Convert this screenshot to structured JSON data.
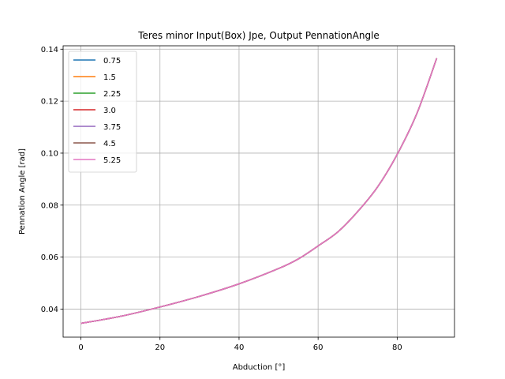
{
  "chart_data": {
    "type": "line",
    "title": "Teres minor Input(Box) Jpe, Output PennationAngle",
    "xlabel": "Abduction [°]",
    "ylabel": "Pennation Angle [rad]",
    "xlim": [
      -4.5,
      94.5
    ],
    "ylim": [
      0.0292,
      0.1413
    ],
    "xticks": [
      0,
      20,
      40,
      60,
      80
    ],
    "yticks": [
      0.04,
      0.06,
      0.08,
      0.1,
      0.12,
      0.14
    ],
    "ytick_labels": [
      "0.04",
      "0.06",
      "0.08",
      "0.10",
      "0.12",
      "0.14"
    ],
    "grid": true,
    "legend_position": "upper left",
    "x": [
      0,
      10,
      20,
      30,
      40,
      50,
      55,
      60,
      65,
      70,
      75,
      80,
      85,
      90
    ],
    "series": [
      {
        "name": "0.75",
        "color": "#1f77b4",
        "values": [
          0.0345,
          0.0372,
          0.0408,
          0.0449,
          0.0497,
          0.0556,
          0.0593,
          0.0643,
          0.0697,
          0.0775,
          0.0869,
          0.0995,
          0.1153,
          0.1365
        ]
      },
      {
        "name": "1.5",
        "color": "#ff7f0e",
        "values": [
          0.0345,
          0.0372,
          0.0408,
          0.0449,
          0.0497,
          0.0556,
          0.0593,
          0.0643,
          0.0697,
          0.0775,
          0.0869,
          0.0995,
          0.1153,
          0.1365
        ]
      },
      {
        "name": "2.25",
        "color": "#2ca02c",
        "values": [
          0.0345,
          0.0372,
          0.0408,
          0.0449,
          0.0497,
          0.0556,
          0.0593,
          0.0643,
          0.0697,
          0.0775,
          0.0869,
          0.0995,
          0.1153,
          0.1365
        ]
      },
      {
        "name": "3.0",
        "color": "#d62728",
        "values": [
          0.0345,
          0.0372,
          0.0408,
          0.0449,
          0.0497,
          0.0556,
          0.0593,
          0.0643,
          0.0697,
          0.0775,
          0.0869,
          0.0995,
          0.1153,
          0.1365
        ]
      },
      {
        "name": "3.75",
        "color": "#9467bd",
        "values": [
          0.0345,
          0.0372,
          0.0408,
          0.0449,
          0.0497,
          0.0556,
          0.0593,
          0.0643,
          0.0697,
          0.0775,
          0.0869,
          0.0995,
          0.1153,
          0.1365
        ]
      },
      {
        "name": "4.5",
        "color": "#8c564b",
        "values": [
          0.0345,
          0.0372,
          0.0408,
          0.0449,
          0.0497,
          0.0556,
          0.0593,
          0.0643,
          0.0697,
          0.0775,
          0.0869,
          0.0995,
          0.1153,
          0.1365
        ]
      },
      {
        "name": "5.25",
        "color": "#e377c2",
        "values": [
          0.0345,
          0.0372,
          0.0408,
          0.0449,
          0.0497,
          0.0556,
          0.0593,
          0.0643,
          0.0697,
          0.0775,
          0.0869,
          0.0995,
          0.1153,
          0.1365
        ]
      }
    ]
  }
}
